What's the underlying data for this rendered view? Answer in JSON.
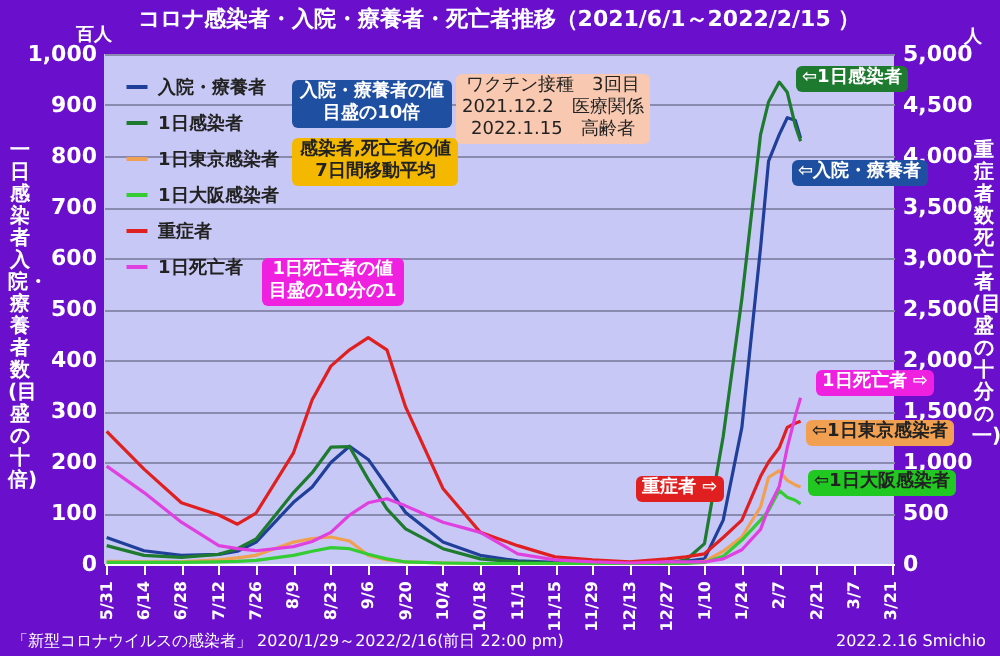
{
  "chart_data": {
    "type": "line",
    "title": "コロナ感染者・入院・療養者・死亡者推移（2021/6/1～2022/2/15 ）",
    "ylabel": "一日感染者入院・療養者数(目盛の十倍)",
    "y2label": "重症者数死亡者(目盛の十分の一)",
    "x": [
      "2021-05-31",
      "2021-06-14",
      "2021-06-28",
      "2021-07-12",
      "2021-07-19",
      "2021-07-26",
      "2021-08-09",
      "2021-08-16",
      "2021-08-23",
      "2021-08-30",
      "2021-09-06",
      "2021-09-13",
      "2021-09-20",
      "2021-10-04",
      "2021-10-18",
      "2021-11-01",
      "2021-11-15",
      "2021-11-29",
      "2021-12-13",
      "2021-12-27",
      "2022-01-03",
      "2022-01-10",
      "2022-01-17",
      "2022-01-24",
      "2022-01-31",
      "2022-02-03",
      "2022-02-07",
      "2022-02-10",
      "2022-02-13",
      "2022-02-15"
    ],
    "series": [
      {
        "name": "入院・療養者",
        "color": "#1f3f9a",
        "values": [
          52,
          26,
          17,
          19,
          25,
          43,
          121,
          151,
          199,
          231,
          205,
          153,
          101,
          43,
          17,
          6,
          3,
          2,
          2,
          3,
          5,
          10,
          86,
          268,
          620,
          790,
          842,
          875,
          870,
          835
        ]
      },
      {
        "name": "1日感染者",
        "color": "#1e7a2e",
        "values": [
          36,
          17,
          13,
          19,
          30,
          49,
          140,
          179,
          229,
          230,
          166,
          108,
          69,
          30,
          10,
          4,
          2,
          1,
          1,
          1,
          8,
          40,
          250,
          520,
          842,
          906,
          945,
          925,
          860,
          829
        ]
      },
      {
        "name": "1日東京感染者",
        "color": "#f0a050",
        "values": [
          5,
          4,
          4,
          8,
          12,
          17,
          43,
          50,
          53,
          45,
          17,
          8,
          4,
          2,
          1,
          1,
          1,
          1,
          1,
          1,
          2,
          5,
          25,
          53,
          112,
          170,
          183,
          164,
          155,
          151
        ]
      },
      {
        "name": "1日大阪感染者",
        "color": "#33cc33",
        "values": [
          3,
          3,
          3,
          4,
          5,
          7,
          17,
          25,
          32,
          30,
          19,
          10,
          4,
          2,
          1,
          1,
          1,
          1,
          1,
          1,
          1,
          3,
          15,
          47,
          86,
          105,
          144,
          131,
          125,
          118
        ]
      },
      {
        "name": "重症者",
        "color": "#e02020",
        "axis": "y2",
        "values": [
          1300,
          930,
          600,
          480,
          390,
          500,
          1090,
          1610,
          1940,
          2100,
          2220,
          2100,
          1540,
          740,
          310,
          180,
          70,
          40,
          20,
          50,
          70,
          100,
          260,
          430,
          860,
          1000,
          1140,
          1340,
          1380,
          1400
        ]
      },
      {
        "name": "1日死亡者",
        "color": "#e040e0",
        "axis": "y2",
        "values": [
          960,
          700,
          410,
          180,
          150,
          130,
          170,
          220,
          310,
          480,
          600,
          640,
          570,
          410,
          310,
          100,
          40,
          20,
          10,
          20,
          20,
          20,
          50,
          140,
          340,
          550,
          760,
          1140,
          1450,
          1630
        ]
      }
    ],
    "xlim": [
      "2021-05-30",
      "2022-03-22"
    ],
    "xticks": [
      {
        "value": "2021-05-31",
        "label": "5/31"
      },
      {
        "value": "2021-06-14",
        "label": "6/14"
      },
      {
        "value": "2021-06-28",
        "label": "6/28"
      },
      {
        "value": "2021-07-12",
        "label": "7/12"
      },
      {
        "value": "2021-07-26",
        "label": "7/26"
      },
      {
        "value": "2021-08-09",
        "label": "8/9"
      },
      {
        "value": "2021-08-23",
        "label": "8/23"
      },
      {
        "value": "2021-09-06",
        "label": "9/6"
      },
      {
        "value": "2021-09-20",
        "label": "9/20"
      },
      {
        "value": "2021-10-04",
        "label": "10/4"
      },
      {
        "value": "2021-10-18",
        "label": "10/18"
      },
      {
        "value": "2021-11-01",
        "label": "11/1"
      },
      {
        "value": "2021-11-15",
        "label": "11/15"
      },
      {
        "value": "2021-11-29",
        "label": "11/29"
      },
      {
        "value": "2021-12-13",
        "label": "12/13"
      },
      {
        "value": "2021-12-27",
        "label": "12/27"
      },
      {
        "value": "2022-01-10",
        "label": "1/10"
      },
      {
        "value": "2022-01-24",
        "label": "1/24"
      },
      {
        "value": "2022-02-07",
        "label": "2/7"
      },
      {
        "value": "2022-02-21",
        "label": "2/21"
      },
      {
        "value": "2022-03-07",
        "label": "3/7"
      },
      {
        "value": "2022-03-21",
        "label": "3/21"
      }
    ],
    "ylim": [
      0,
      1000
    ],
    "yticks": [
      0,
      100,
      200,
      300,
      400,
      500,
      600,
      700,
      800,
      900,
      {
        "value": 1000,
        "label": "1,000"
      }
    ],
    "y2lim": [
      0,
      5000
    ],
    "y2ticks": [
      0,
      500,
      {
        "value": 1000,
        "label": "1,000"
      },
      {
        "value": 1500,
        "label": "1,500"
      },
      {
        "value": 2000,
        "label": "2,000"
      },
      {
        "value": 2500,
        "label": "2,500"
      },
      {
        "value": 3000,
        "label": "3,000"
      },
      {
        "value": 3500,
        "label": "3,500"
      },
      {
        "value": 4000,
        "label": "4,000"
      },
      {
        "value": 4500,
        "label": "4,500"
      },
      {
        "value": 5000,
        "label": "5,000"
      }
    ],
    "grid": "y",
    "legend": "top left",
    "annotations": [
      "入院・療養者の値目盛の10倍",
      "感染者,死亡者の値7日間移動平均",
      "1日死亡者の値目盛の10分の1",
      "ワクチン接種　3回目\n2021.12.2　医療関係\n2022.1.15　高齢者",
      "⇦1日感染者",
      "⇦入院・療養者",
      "1日死亡者 ⇨",
      "⇦1日東京感染者",
      "重症者 ⇨",
      "⇦1日大阪感染者",
      "百人",
      "人",
      "「新型コロナウイルスの感染者」 2020/1/29～2022/2/16(前日 22:00 pm)",
      "2022.2.16 Smichio"
    ]
  }
}
